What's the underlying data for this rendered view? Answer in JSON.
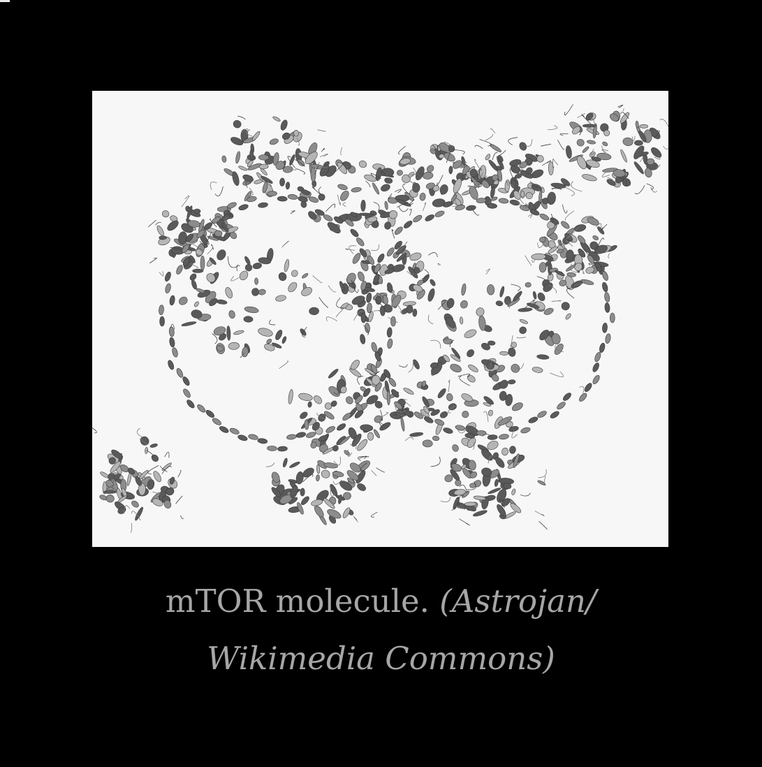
{
  "figure": {
    "subject": "mTOR molecule protein ribbon structure",
    "background_color": "#f7f7f7",
    "ribbon_dark": "#5a5a5a",
    "ribbon_mid": "#8c8c8c",
    "ribbon_light": "#b5b5b5"
  },
  "caption": {
    "main": "mTOR molecule.",
    "credit": "(Astrojan/ Wikimedia Commons)"
  },
  "page": {
    "background_color": "#000000",
    "caption_color": "#a6a6a6"
  }
}
